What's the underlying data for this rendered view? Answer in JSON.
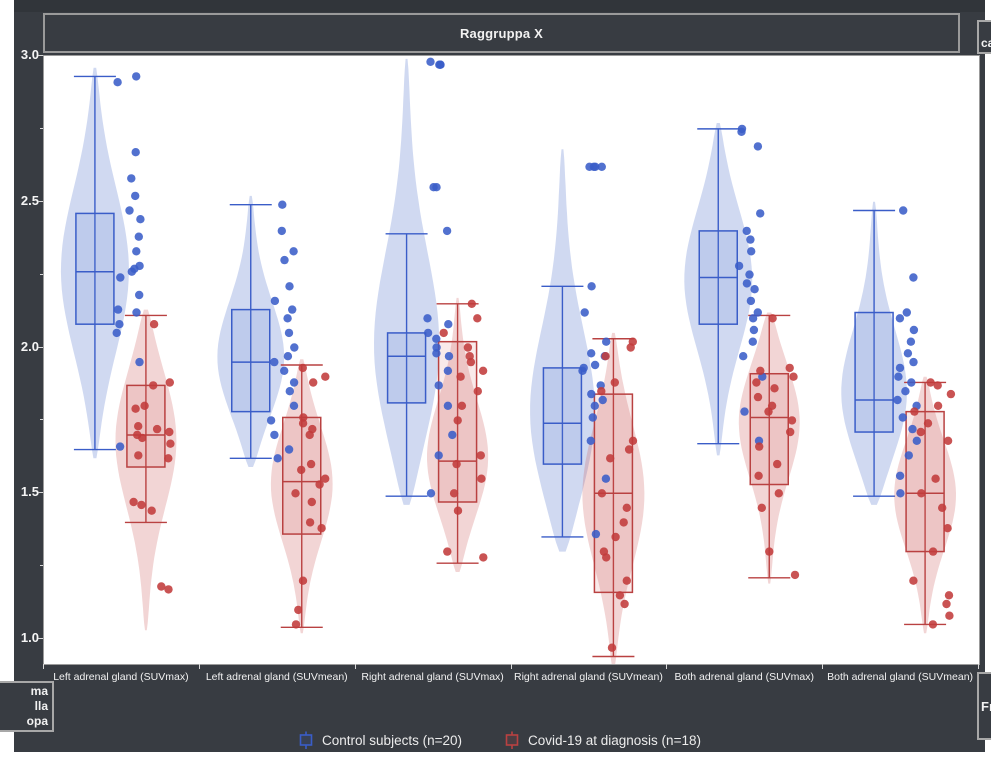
{
  "facet": {
    "title": "Raggruppa X",
    "next_facet_title_fragment": "ca",
    "next_facet_bottom_fragment": "Fr",
    "left_bottom_fragment_lines": [
      "ma",
      "lla",
      "opa"
    ]
  },
  "colors": {
    "panel_bg": "#383c42",
    "control_line": "#3a5dc8",
    "control_fill": "rgba(100,130,210,0.30)",
    "control_box_fill": "rgba(100,130,210,0.16)",
    "covid_line": "#b94141",
    "covid_fill": "rgba(205,92,92,0.26)",
    "covid_box_fill": "rgba(205,92,92,0.13)"
  },
  "y_axis": {
    "tick_labels": [
      "3.0",
      "2.5",
      "2.0",
      "1.5",
      "1.0"
    ],
    "tick_values": [
      3.0,
      2.5,
      2.0,
      1.5,
      1.0
    ],
    "minor_tick_values": [
      2.75,
      2.25,
      1.75,
      1.25
    ]
  },
  "legend": [
    {
      "label": "Control subjects (n=20)",
      "color": "#3a5dc8"
    },
    {
      "label": "Covid-19 at diagnosis (n=18)",
      "color": "#b94141"
    }
  ],
  "chart_data": {
    "type": "violin",
    "subtype": "violin+box+points",
    "title": "Raggruppa X",
    "xlabel": "",
    "ylabel": "",
    "ylim": [
      0.91,
      3.0
    ],
    "grid": false,
    "legend_position": "bottom",
    "categories": [
      "Left adrenal gland (SUVmax)",
      "Left adrenal gland (SUVmean)",
      "Right adrenal gland (SUVmax)",
      "Right adrenal gland (SUVmean)",
      "Both adrenal gland (SUVmax)",
      "Both adrenal gland (SUVmean)"
    ],
    "series": [
      {
        "name": "Control subjects (n=20)",
        "groups": [
          {
            "violin": [
              1.62,
              2.96
            ],
            "box": {
              "lo": 1.65,
              "q1": 2.08,
              "med": 2.26,
              "q3": 2.46,
              "hi": 2.93
            },
            "points": [
              2.93,
              2.91,
              2.67,
              2.58,
              2.52,
              2.47,
              2.44,
              2.38,
              2.33,
              2.28,
              2.27,
              2.26,
              2.24,
              2.18,
              2.13,
              2.12,
              2.08,
              2.05,
              1.95,
              1.66
            ]
          },
          {
            "violin": [
              1.59,
              2.52
            ],
            "box": {
              "lo": 1.62,
              "q1": 1.78,
              "med": 1.95,
              "q3": 2.13,
              "hi": 2.49
            },
            "points": [
              2.49,
              2.4,
              2.33,
              2.3,
              2.21,
              2.16,
              2.13,
              2.1,
              2.05,
              2.0,
              1.97,
              1.95,
              1.92,
              1.88,
              1.85,
              1.8,
              1.75,
              1.7,
              1.65,
              1.62
            ]
          },
          {
            "violin": [
              1.46,
              2.99
            ],
            "box": {
              "lo": 1.49,
              "q1": 1.81,
              "med": 1.97,
              "q3": 2.05,
              "hi": 2.39
            },
            "points": [
              2.98,
              2.97,
              2.97,
              2.97,
              2.55,
              2.55,
              2.4,
              2.1,
              2.08,
              2.05,
              2.03,
              2.0,
              1.98,
              1.97,
              1.92,
              1.87,
              1.8,
              1.7,
              1.63,
              1.5
            ]
          },
          {
            "violin": [
              1.3,
              2.68
            ],
            "box": {
              "lo": 1.35,
              "q1": 1.6,
              "med": 1.74,
              "q3": 1.93,
              "hi": 2.21
            },
            "points": [
              2.62,
              2.62,
              2.62,
              2.62,
              2.21,
              2.12,
              2.02,
              1.98,
              1.97,
              1.94,
              1.93,
              1.92,
              1.87,
              1.84,
              1.82,
              1.8,
              1.76,
              1.68,
              1.55,
              1.36
            ]
          },
          {
            "violin": [
              1.63,
              2.77
            ],
            "box": {
              "lo": 1.67,
              "q1": 2.08,
              "med": 2.24,
              "q3": 2.4,
              "hi": 2.75
            },
            "points": [
              2.75,
              2.74,
              2.69,
              2.46,
              2.4,
              2.37,
              2.33,
              2.28,
              2.25,
              2.22,
              2.2,
              2.16,
              2.12,
              2.1,
              2.06,
              2.02,
              1.97,
              1.9,
              1.78,
              1.68
            ]
          },
          {
            "violin": [
              1.46,
              2.5
            ],
            "box": {
              "lo": 1.49,
              "q1": 1.71,
              "med": 1.82,
              "q3": 2.12,
              "hi": 2.47
            },
            "points": [
              2.47,
              2.24,
              2.12,
              2.1,
              2.06,
              2.02,
              1.98,
              1.95,
              1.93,
              1.9,
              1.88,
              1.85,
              1.82,
              1.8,
              1.76,
              1.72,
              1.68,
              1.63,
              1.56,
              1.5
            ]
          }
        ]
      },
      {
        "name": "Covid-19 at diagnosis (n=18)",
        "groups": [
          {
            "violin": [
              1.03,
              2.13
            ],
            "box": {
              "lo": 1.4,
              "q1": 1.59,
              "med": 1.7,
              "q3": 1.87,
              "hi": 2.11
            },
            "points": [
              2.08,
              1.88,
              1.87,
              1.8,
              1.79,
              1.73,
              1.72,
              1.71,
              1.7,
              1.69,
              1.67,
              1.63,
              1.62,
              1.47,
              1.46,
              1.44,
              1.18,
              1.17
            ]
          },
          {
            "violin": [
              1.02,
              1.96
            ],
            "box": {
              "lo": 1.04,
              "q1": 1.36,
              "med": 1.54,
              "q3": 1.76,
              "hi": 1.94
            },
            "points": [
              1.93,
              1.9,
              1.88,
              1.76,
              1.74,
              1.72,
              1.7,
              1.6,
              1.58,
              1.55,
              1.53,
              1.5,
              1.47,
              1.4,
              1.38,
              1.2,
              1.1,
              1.05
            ]
          },
          {
            "violin": [
              1.23,
              2.17
            ],
            "box": {
              "lo": 1.26,
              "q1": 1.47,
              "med": 1.61,
              "q3": 2.02,
              "hi": 2.15
            },
            "points": [
              2.15,
              2.1,
              2.05,
              2.0,
              1.97,
              1.95,
              1.92,
              1.9,
              1.85,
              1.8,
              1.75,
              1.63,
              1.6,
              1.55,
              1.5,
              1.44,
              1.3,
              1.28
            ]
          },
          {
            "violin": [
              0.9,
              2.05
            ],
            "box": {
              "lo": 0.94,
              "q1": 1.16,
              "med": 1.5,
              "q3": 1.84,
              "hi": 2.03
            },
            "points": [
              2.02,
              2.0,
              1.97,
              1.88,
              1.85,
              1.68,
              1.65,
              1.62,
              1.5,
              1.45,
              1.4,
              1.35,
              1.3,
              1.28,
              1.2,
              1.15,
              1.12,
              0.97
            ]
          },
          {
            "violin": [
              1.19,
              2.12
            ],
            "box": {
              "lo": 1.21,
              "q1": 1.53,
              "med": 1.76,
              "q3": 1.91,
              "hi": 2.11
            },
            "points": [
              2.1,
              1.93,
              1.92,
              1.9,
              1.88,
              1.86,
              1.83,
              1.8,
              1.78,
              1.75,
              1.71,
              1.66,
              1.6,
              1.56,
              1.5,
              1.45,
              1.3,
              1.22
            ]
          },
          {
            "violin": [
              1.02,
              1.9
            ],
            "box": {
              "lo": 1.05,
              "q1": 1.3,
              "med": 1.5,
              "q3": 1.78,
              "hi": 1.88
            },
            "points": [
              1.88,
              1.87,
              1.84,
              1.8,
              1.78,
              1.74,
              1.71,
              1.68,
              1.55,
              1.5,
              1.45,
              1.38,
              1.3,
              1.2,
              1.15,
              1.12,
              1.08,
              1.05
            ]
          }
        ]
      }
    ]
  }
}
